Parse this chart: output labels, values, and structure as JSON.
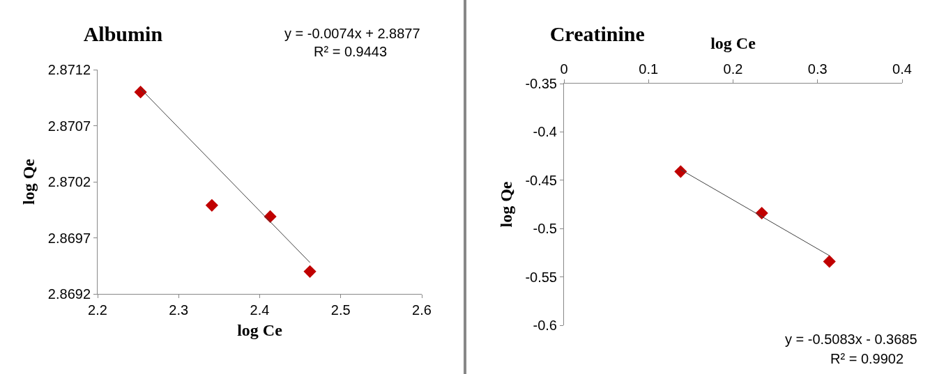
{
  "chart_data": [
    {
      "type": "scatter",
      "title": "Albumin",
      "xlabel": "log Ce",
      "ylabel": "log Qe",
      "annotations": [
        "y = -0.0074x + 2.8877",
        "R² = 0.9443"
      ],
      "xlim": [
        2.2,
        2.6
      ],
      "xticks": [
        2.2,
        2.3,
        2.4,
        2.5,
        2.6
      ],
      "ylim": [
        2.8692,
        2.8712
      ],
      "yticks": [
        2.8692,
        2.8697,
        2.8702,
        2.8707,
        2.8712
      ],
      "grid": false,
      "marker": "diamond",
      "series": [
        {
          "color": "#c00000",
          "x": [
            2.253,
            2.341,
            2.413,
            2.462
          ],
          "values": [
            2.871,
            2.86999,
            2.86989,
            2.8694
          ]
        },
        {
          "type": "line",
          "color": "#404040",
          "marker": "none",
          "x": [
            2.253,
            2.462
          ],
          "values": [
            2.87103,
            2.86948
          ]
        }
      ]
    },
    {
      "type": "scatter",
      "title": "Creatinine",
      "xlabel": "log Ce",
      "ylabel": "log Qe",
      "annotations": [
        "y = -0.5083x - 0.3685",
        "R² = 0.9902"
      ],
      "xlim": [
        0,
        0.4
      ],
      "xticks": [
        0,
        0.1,
        0.2,
        0.3,
        0.4
      ],
      "ylim": [
        -0.6,
        -0.35
      ],
      "yticks": [
        -0.6,
        -0.55,
        -0.5,
        -0.45,
        -0.4,
        -0.35
      ],
      "grid": false,
      "marker": "diamond",
      "series": [
        {
          "color": "#c00000",
          "x": [
            0.138,
            0.234,
            0.314
          ],
          "values": [
            -0.441,
            -0.484,
            -0.534
          ]
        },
        {
          "type": "line",
          "color": "#404040",
          "marker": "none",
          "x": [
            0.138,
            0.314
          ],
          "values": [
            -0.439,
            -0.528
          ]
        }
      ]
    }
  ]
}
